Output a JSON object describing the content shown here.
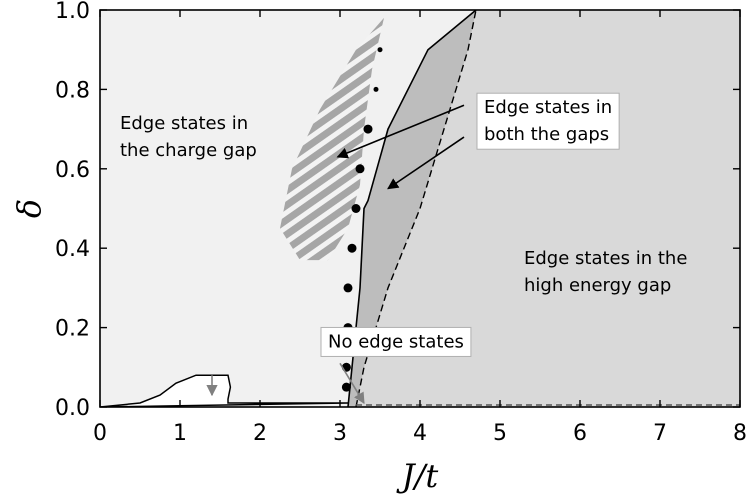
{
  "chart_data": {
    "type": "area",
    "title": "",
    "xlabel": "J/t",
    "ylabel": "δ",
    "xlim": [
      0,
      8
    ],
    "ylim": [
      0,
      1
    ],
    "xticks": [
      0,
      1,
      2,
      3,
      4,
      5,
      6,
      7,
      8
    ],
    "xtick_labels": [
      "0",
      "1",
      "2",
      "3",
      "4",
      "5",
      "6",
      "7",
      "8"
    ],
    "yticks": [
      0,
      0.2,
      0.4,
      0.6,
      0.8,
      1.0
    ],
    "ytick_labels": [
      "0.0",
      "0.2",
      "0.4",
      "0.6",
      "0.8",
      "1.0"
    ],
    "grid": false,
    "colors": {
      "background_region": "#f1f1f1",
      "high_energy_region": "#d9d9d9",
      "both_gaps_region": "#bdbdbd",
      "no_edge_region": "#ffffff",
      "hatch_fill": "#a6a6a6",
      "hatch_stripe": "#f3f3f3",
      "dots": "#000000",
      "arrow": "#000000",
      "arrow_gray": "#808080"
    },
    "regions": [
      {
        "label": "Edge states in the charge gap",
        "lines": [
          "Edge states in",
          "the charge gap"
        ]
      },
      {
        "label": "Edge states in both the gaps",
        "lines": [
          "Edge states in",
          "both the gaps"
        ]
      },
      {
        "label": "Edge states in the high energy gap",
        "lines": [
          "Edge states in the",
          "high energy gap"
        ]
      },
      {
        "label": "No edge states",
        "lines": [
          "No edge states"
        ]
      }
    ],
    "boundaries": {
      "solid_line": [
        [
          3.1,
          0.0
        ],
        [
          3.15,
          0.1
        ],
        [
          3.25,
          0.3
        ],
        [
          3.3,
          0.5
        ],
        [
          3.35,
          0.52
        ],
        [
          3.6,
          0.7
        ],
        [
          4.1,
          0.9
        ],
        [
          4.7,
          1.0
        ]
      ],
      "dashed_line": [
        [
          3.2,
          0.0
        ],
        [
          3.3,
          0.1
        ],
        [
          3.6,
          0.3
        ],
        [
          4.0,
          0.5
        ],
        [
          4.3,
          0.7
        ],
        [
          4.6,
          0.9
        ],
        [
          4.7,
          1.0
        ]
      ],
      "low_dashed_line": [
        [
          3.2,
          0.005
        ],
        [
          8.0,
          0.005
        ]
      ],
      "no_edge_outline": [
        [
          0.0,
          0.0
        ],
        [
          0.5,
          0.01
        ],
        [
          0.75,
          0.03
        ],
        [
          0.95,
          0.06
        ],
        [
          1.2,
          0.08
        ],
        [
          1.6,
          0.08
        ],
        [
          1.63,
          0.05
        ],
        [
          1.6,
          0.02
        ],
        [
          1.6,
          0.01
        ],
        [
          3.1,
          0.01
        ]
      ],
      "hatched_region_outline": [
        [
          3.55,
          0.98
        ],
        [
          3.4,
          0.85
        ],
        [
          3.3,
          0.7
        ],
        [
          3.25,
          0.56
        ],
        [
          3.1,
          0.45
        ],
        [
          2.85,
          0.37
        ],
        [
          2.5,
          0.37
        ],
        [
          2.25,
          0.45
        ],
        [
          2.4,
          0.6
        ],
        [
          2.75,
          0.75
        ],
        [
          3.2,
          0.9
        ],
        [
          3.55,
          0.98
        ]
      ]
    },
    "dots": [
      {
        "x": 3.5,
        "y": 0.9
      },
      {
        "x": 3.45,
        "y": 0.8
      },
      {
        "x": 3.35,
        "y": 0.7
      },
      {
        "x": 3.25,
        "y": 0.6
      },
      {
        "x": 3.2,
        "y": 0.5
      },
      {
        "x": 3.15,
        "y": 0.4
      },
      {
        "x": 3.1,
        "y": 0.3
      },
      {
        "x": 3.1,
        "y": 0.2
      },
      {
        "x": 3.08,
        "y": 0.1
      },
      {
        "x": 3.08,
        "y": 0.05
      }
    ],
    "annotations": [
      {
        "name": "charge-gap-label",
        "lines": [
          "Edge states in",
          "the charge gap"
        ],
        "x": 0.25,
        "y": 0.7,
        "box": false
      },
      {
        "name": "both-gaps-label",
        "lines": [
          "Edge states in",
          "both the gaps"
        ],
        "x": 4.8,
        "y": 0.74,
        "box": true
      },
      {
        "name": "high-energy-label",
        "lines": [
          "Edge states in the",
          "high energy gap"
        ],
        "x": 5.3,
        "y": 0.36,
        "box": false
      },
      {
        "name": "no-edge-label",
        "lines": [
          "No edge states"
        ],
        "x": 2.85,
        "y": 0.15,
        "box": true
      }
    ],
    "arrows": [
      {
        "name": "arrow-both-to-hatched",
        "from": [
          4.55,
          0.76
        ],
        "to": [
          2.97,
          0.63
        ],
        "color": "arrow"
      },
      {
        "name": "arrow-both-to-gray",
        "from": [
          4.55,
          0.68
        ],
        "to": [
          3.6,
          0.55
        ],
        "color": "arrow"
      },
      {
        "name": "arrow-noedge-up",
        "from": [
          1.4,
          0.08
        ],
        "to": [
          1.4,
          0.03
        ],
        "color": "arrow_gray"
      },
      {
        "name": "arrow-noedge-right",
        "from": [
          3.0,
          0.11
        ],
        "to": [
          3.3,
          0.01
        ],
        "color": "arrow_gray"
      }
    ]
  }
}
